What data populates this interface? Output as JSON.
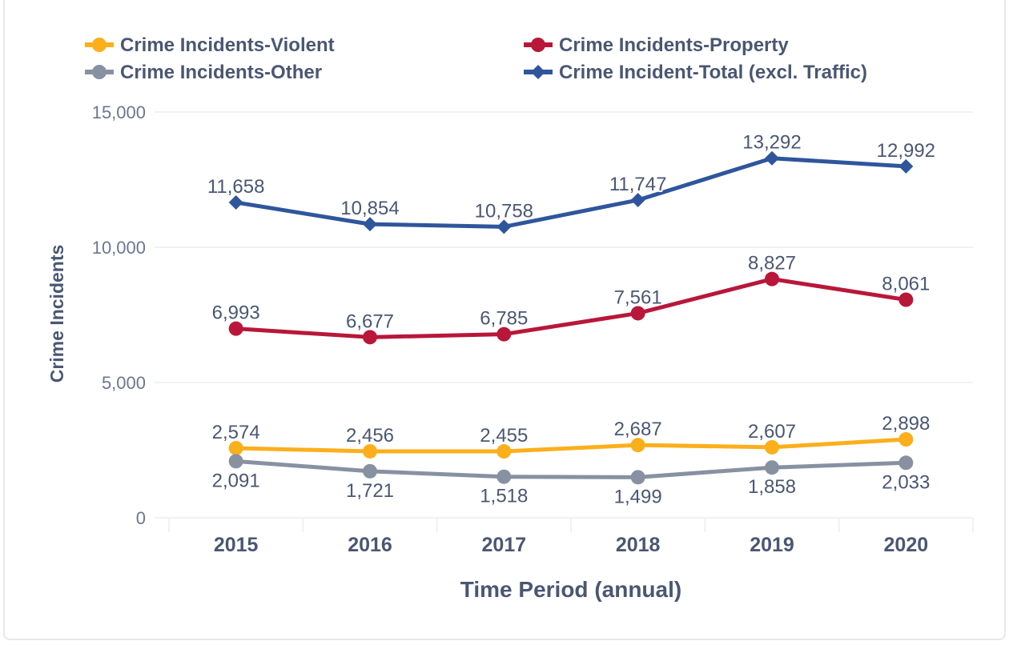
{
  "chart_data": {
    "type": "line",
    "title": "",
    "xlabel": "Time Period (annual)",
    "ylabel": "Crime Incidents",
    "categories": [
      "2015",
      "2016",
      "2017",
      "2018",
      "2019",
      "2020"
    ],
    "ylim": [
      0,
      15000
    ],
    "yticks": [
      0,
      5000,
      10000,
      15000
    ],
    "ytick_labels": [
      "0",
      "5,000",
      "10,000",
      "15,000"
    ],
    "grid": true,
    "legend_position": "top",
    "series": [
      {
        "name": "Crime Incidents-Violent",
        "color": "#fbaf1b",
        "marker": "circle",
        "values": [
          2574,
          2456,
          2455,
          2687,
          2607,
          2898
        ],
        "labels": [
          "2,574",
          "2,456",
          "2,455",
          "2,687",
          "2,607",
          "2,898"
        ]
      },
      {
        "name": "Crime Incidents-Property",
        "color": "#b8173a",
        "marker": "circle",
        "values": [
          6993,
          6677,
          6785,
          7561,
          8827,
          8061
        ],
        "labels": [
          "6,993",
          "6,677",
          "6,785",
          "7,561",
          "8,827",
          "8,061"
        ]
      },
      {
        "name": "Crime Incidents-Other",
        "color": "#8891a1",
        "marker": "circle",
        "values": [
          2091,
          1721,
          1518,
          1499,
          1858,
          2033
        ],
        "labels": [
          "2,091",
          "1,721",
          "1,518",
          "1,499",
          "1,858",
          "2,033"
        ]
      },
      {
        "name": "Crime Incident-Total (excl. Traffic)",
        "color": "#2f569c",
        "marker": "diamond",
        "values": [
          11658,
          10854,
          10758,
          11747,
          13292,
          12992
        ],
        "labels": [
          "11,658",
          "10,854",
          "10,758",
          "11,747",
          "13,292",
          "12,992"
        ]
      }
    ]
  }
}
